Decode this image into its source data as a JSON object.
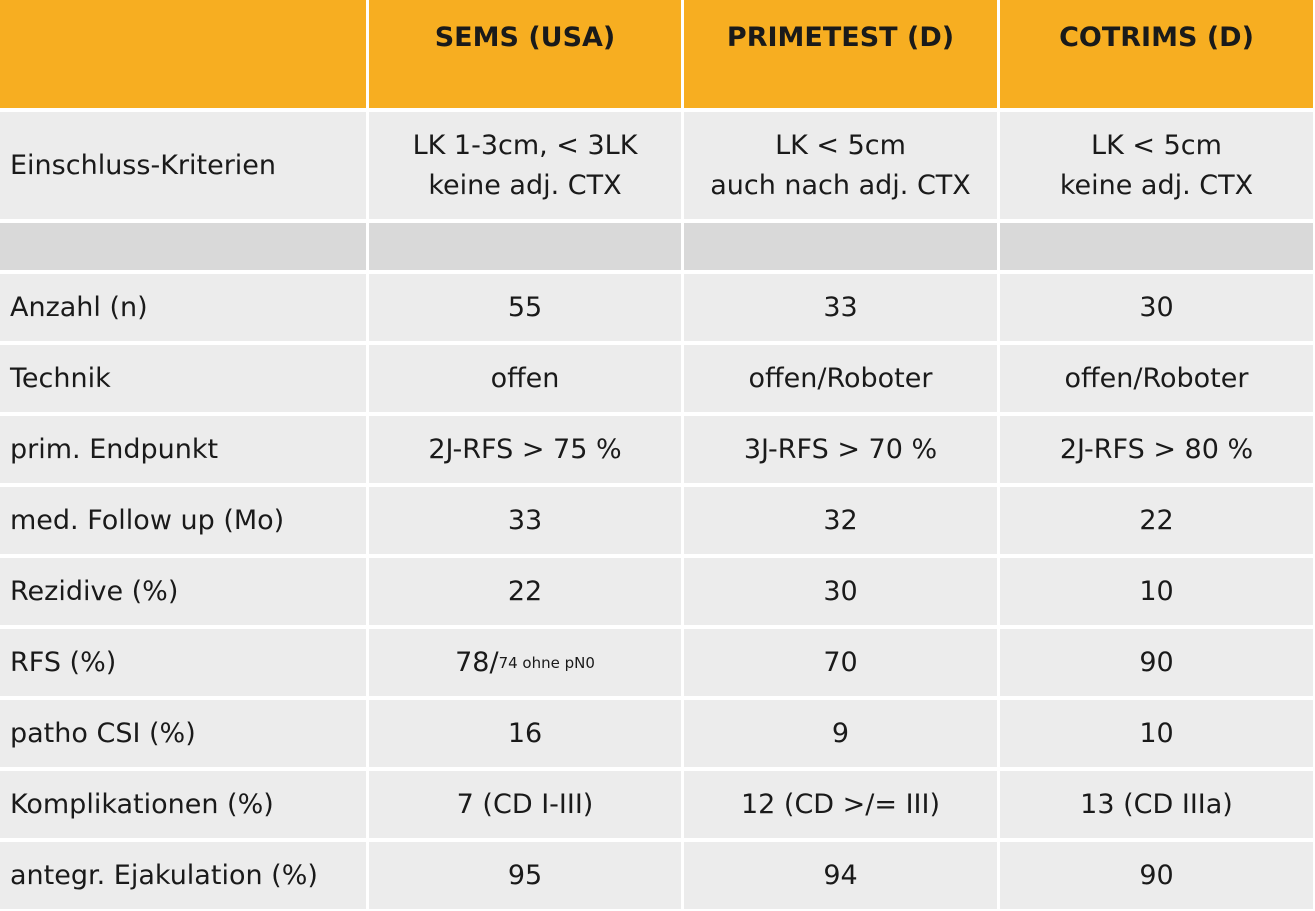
{
  "colors": {
    "header": "#f7ae21",
    "cell": "#ececec",
    "spacer": "#d9d9d9"
  },
  "header": [
    "",
    "SEMS (USA)",
    "PRIMETEST (D)",
    "COTRIMS (D)"
  ],
  "criteria": {
    "label": "Einschluss-Kriterien",
    "values": [
      [
        "LK 1-3cm, < 3LK",
        "keine adj. CTX"
      ],
      [
        "LK < 5cm",
        "auch nach adj. CTX"
      ],
      [
        "LK < 5cm",
        "keine adj. CTX"
      ]
    ]
  },
  "rows": [
    {
      "label": "Anzahl (n)",
      "values": [
        "55",
        "33",
        "30"
      ]
    },
    {
      "label": "Technik",
      "values": [
        "offen",
        "offen/Roboter",
        "offen/Roboter"
      ]
    },
    {
      "label": "prim. Endpunkt",
      "values": [
        "2J-RFS > 75 %",
        "3J-RFS > 70 %",
        "2J-RFS > 80 %"
      ]
    },
    {
      "label": "med. Follow up (Mo)",
      "values": [
        "33",
        "32",
        "22"
      ]
    },
    {
      "label": "Rezidive (%)",
      "values": [
        "22",
        "30",
        "10"
      ]
    },
    {
      "label": "RFS (%)",
      "values": [
        "78/",
        "70",
        "90"
      ],
      "note": "74 ohne pN0"
    },
    {
      "label": "patho CSI (%)",
      "values": [
        "16",
        "9",
        "10"
      ]
    },
    {
      "label": "Komplikationen (%)",
      "values": [
        "7 (CD I-III)",
        "12 (CD >/= III)",
        "13 (CD IIIa)"
      ]
    },
    {
      "label": "antegr. Ejakulation (%)",
      "values": [
        "95",
        "94",
        "90"
      ]
    }
  ]
}
